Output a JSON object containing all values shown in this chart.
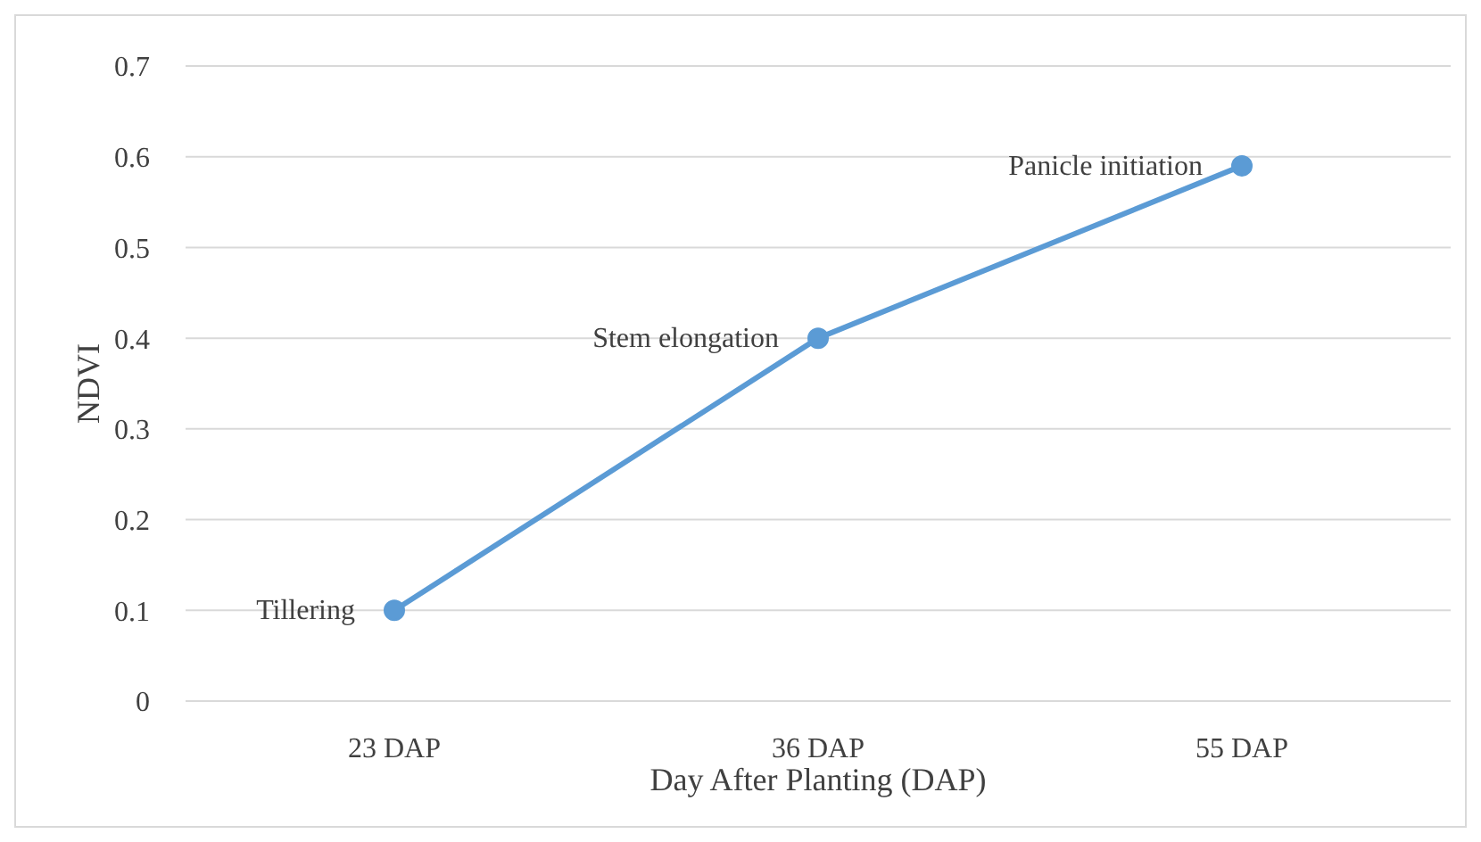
{
  "chart_data": {
    "type": "line",
    "xlabel": "Day After Planting (DAP)",
    "ylabel": "NDVI",
    "categories": [
      "23 DAP",
      "36 DAP",
      "55 DAP"
    ],
    "series": [
      {
        "color": "#5b9bd5",
        "values": [
          0.1,
          0.4,
          0.59
        ]
      }
    ],
    "ylim": [
      0,
      0.7
    ],
    "yticks": [
      {
        "value": 0,
        "label": "0"
      },
      0.1,
      0.2,
      0.3,
      0.4,
      0.5,
      0.6,
      0.7
    ],
    "grid": "y",
    "legend": false,
    "marker": "circle",
    "line_style": "solid",
    "annotations": [
      {
        "text": "Tillering",
        "x": "23 DAP",
        "y": 0.1
      },
      {
        "text": "Stem elongation",
        "x": "36 DAP",
        "y": 0.4
      },
      {
        "text": "Panicle initiation",
        "x": "55 DAP",
        "y": 0.59
      }
    ]
  }
}
